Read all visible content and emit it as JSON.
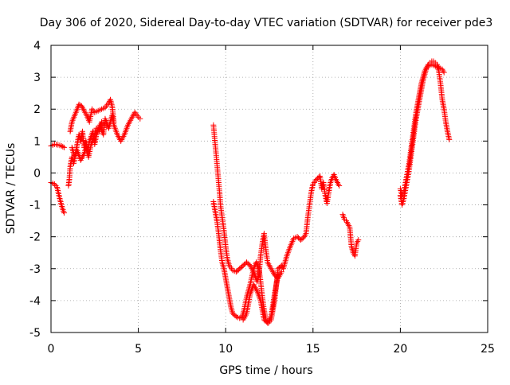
{
  "chart_data": {
    "type": "scatter",
    "title": "Day 306 of 2020, Sidereal Day-to-day VTEC variation (SDTVAR) for receiver pde3",
    "xlabel": "GPS time / hours",
    "ylabel": "SDTVAR / TECUs",
    "xlim": [
      0,
      25
    ],
    "ylim": [
      -5,
      4
    ],
    "xticks": [
      0,
      5,
      10,
      15,
      20,
      25
    ],
    "yticks": [
      -5,
      -4,
      -3,
      -2,
      -1,
      0,
      1,
      2,
      3,
      4
    ],
    "grid": true,
    "legend": "none",
    "series_color": "#ff0000",
    "marker": "plus",
    "series": [
      {
        "name": "SDTVAR",
        "segments": [
          [
            [
              0.0,
              0.85
            ],
            [
              0.2,
              0.9
            ],
            [
              0.4,
              0.88
            ],
            [
              0.6,
              0.85
            ],
            [
              0.75,
              0.8
            ]
          ],
          [
            [
              0.0,
              -0.3
            ],
            [
              0.2,
              -0.35
            ],
            [
              0.35,
              -0.45
            ],
            [
              0.5,
              -0.8
            ],
            [
              0.65,
              -1.1
            ],
            [
              0.75,
              -1.25
            ]
          ],
          [
            [
              1.0,
              -0.4
            ],
            [
              1.05,
              -0.2
            ],
            [
              1.1,
              0.2
            ],
            [
              1.2,
              0.5
            ],
            [
              1.3,
              0.3
            ],
            [
              1.4,
              0.6
            ],
            [
              1.5,
              0.9
            ],
            [
              1.6,
              1.2
            ],
            [
              1.7,
              1.0
            ],
            [
              1.8,
              1.3
            ],
            [
              1.9,
              0.8
            ],
            [
              2.0,
              1.0
            ],
            [
              2.1,
              0.7
            ],
            [
              2.2,
              1.0
            ],
            [
              2.4,
              1.3
            ],
            [
              2.5,
              0.9
            ],
            [
              2.6,
              1.2
            ],
            [
              2.8,
              1.5
            ],
            [
              3.0,
              1.2
            ],
            [
              3.1,
              1.7
            ],
            [
              3.3,
              1.4
            ],
            [
              3.5,
              1.8
            ],
            [
              3.6,
              1.5
            ],
            [
              3.8,
              1.2
            ],
            [
              4.0,
              1.0
            ],
            [
              4.2,
              1.2
            ],
            [
              4.4,
              1.5
            ],
            [
              4.6,
              1.7
            ],
            [
              4.8,
              1.9
            ],
            [
              5.0,
              1.75
            ],
            [
              5.1,
              1.7
            ]
          ],
          [
            [
              1.1,
              1.3
            ],
            [
              1.2,
              1.6
            ],
            [
              1.35,
              1.8
            ],
            [
              1.5,
              2.0
            ],
            [
              1.6,
              2.15
            ],
            [
              1.75,
              2.1
            ],
            [
              1.9,
              1.95
            ],
            [
              2.05,
              1.8
            ],
            [
              2.2,
              1.6
            ],
            [
              2.35,
              2.0
            ],
            [
              2.5,
              1.9
            ],
            [
              2.7,
              1.95
            ],
            [
              2.9,
              2.0
            ],
            [
              3.1,
              2.05
            ],
            [
              3.3,
              2.2
            ],
            [
              3.4,
              2.3
            ],
            [
              3.5,
              2.1
            ],
            [
              3.6,
              1.6
            ]
          ],
          [
            [
              1.2,
              0.8
            ],
            [
              1.35,
              0.5
            ],
            [
              1.5,
              0.7
            ],
            [
              1.7,
              0.4
            ],
            [
              1.9,
              0.6
            ],
            [
              2.0,
              0.8
            ],
            [
              2.15,
              0.5
            ],
            [
              2.3,
              0.9
            ],
            [
              2.45,
              1.1
            ],
            [
              2.6,
              1.4
            ],
            [
              2.75,
              1.3
            ],
            [
              2.9,
              1.6
            ],
            [
              3.05,
              1.5
            ]
          ],
          [
            [
              9.3,
              1.5
            ],
            [
              9.35,
              1.2
            ],
            [
              9.4,
              0.9
            ],
            [
              9.45,
              0.6
            ],
            [
              9.5,
              0.3
            ],
            [
              9.55,
              0.0
            ],
            [
              9.6,
              -0.3
            ],
            [
              9.65,
              -0.6
            ],
            [
              9.7,
              -1.0
            ],
            [
              9.8,
              -1.4
            ],
            [
              9.9,
              -1.8
            ],
            [
              10.0,
              -2.3
            ],
            [
              10.1,
              -2.7
            ],
            [
              10.2,
              -2.9
            ],
            [
              10.4,
              -3.05
            ],
            [
              10.6,
              -3.1
            ],
            [
              10.8,
              -3.0
            ],
            [
              11.0,
              -2.9
            ],
            [
              11.2,
              -2.8
            ],
            [
              11.4,
              -2.9
            ],
            [
              11.6,
              -3.1
            ],
            [
              11.8,
              -3.4
            ],
            [
              11.9,
              -3.2
            ],
            [
              12.0,
              -2.6
            ],
            [
              12.1,
              -2.2
            ],
            [
              12.2,
              -1.9
            ],
            [
              12.3,
              -2.4
            ],
            [
              12.4,
              -2.8
            ],
            [
              12.6,
              -3.0
            ],
            [
              12.8,
              -3.2
            ],
            [
              13.0,
              -3.3
            ],
            [
              13.2,
              -3.1
            ]
          ],
          [
            [
              9.3,
              -0.9
            ],
            [
              9.4,
              -1.2
            ],
            [
              9.5,
              -1.5
            ],
            [
              9.6,
              -1.9
            ],
            [
              9.7,
              -2.4
            ],
            [
              9.8,
              -2.8
            ],
            [
              9.9,
              -3.0
            ],
            [
              10.0,
              -3.3
            ],
            [
              10.1,
              -3.6
            ],
            [
              10.2,
              -3.9
            ],
            [
              10.3,
              -4.2
            ],
            [
              10.4,
              -4.4
            ],
            [
              10.6,
              -4.5
            ],
            [
              10.8,
              -4.55
            ],
            [
              10.95,
              -4.5
            ],
            [
              11.05,
              -4.3
            ],
            [
              11.2,
              -3.9
            ],
            [
              11.4,
              -3.5
            ],
            [
              11.6,
              -3.0
            ],
            [
              11.75,
              -2.8
            ],
            [
              11.9,
              -3.0
            ],
            [
              12.0,
              -3.4
            ],
            [
              12.1,
              -3.9
            ],
            [
              12.2,
              -4.3
            ],
            [
              12.3,
              -4.6
            ],
            [
              12.45,
              -4.7
            ],
            [
              12.6,
              -4.6
            ],
            [
              12.7,
              -4.3
            ],
            [
              12.8,
              -4.0
            ],
            [
              12.9,
              -3.5
            ],
            [
              13.0,
              -3.0
            ],
            [
              13.2,
              -2.9
            ],
            [
              13.3,
              -3.0
            ],
            [
              13.5,
              -2.6
            ],
            [
              13.7,
              -2.3
            ],
            [
              13.9,
              -2.05
            ],
            [
              14.1,
              -2.0
            ],
            [
              14.3,
              -2.1
            ],
            [
              14.5,
              -2.0
            ],
            [
              14.6,
              -1.9
            ],
            [
              14.7,
              -1.4
            ],
            [
              14.8,
              -1.0
            ],
            [
              14.9,
              -0.6
            ],
            [
              15.0,
              -0.35
            ],
            [
              15.2,
              -0.2
            ],
            [
              15.4,
              -0.1
            ]
          ],
          [
            [
              11.0,
              -4.6
            ],
            [
              11.2,
              -4.4
            ],
            [
              11.4,
              -3.8
            ],
            [
              11.6,
              -3.5
            ],
            [
              11.8,
              -3.7
            ],
            [
              12.0,
              -4.0
            ],
            [
              12.2,
              -4.6
            ],
            [
              12.4,
              -4.7
            ],
            [
              12.6,
              -4.5
            ],
            [
              12.8,
              -3.8
            ],
            [
              13.0,
              -3.2
            ]
          ],
          [
            [
              15.4,
              -0.1
            ],
            [
              15.5,
              -0.5
            ],
            [
              15.6,
              -0.3
            ],
            [
              15.7,
              -0.7
            ],
            [
              15.8,
              -0.95
            ],
            [
              15.9,
              -0.6
            ],
            [
              16.0,
              -0.3
            ],
            [
              16.1,
              -0.15
            ],
            [
              16.2,
              -0.05
            ],
            [
              16.3,
              -0.2
            ],
            [
              16.4,
              -0.3
            ],
            [
              16.5,
              -0.4
            ]
          ],
          [
            [
              16.7,
              -1.3
            ],
            [
              16.8,
              -1.45
            ],
            [
              16.9,
              -1.5
            ],
            [
              17.0,
              -1.6
            ],
            [
              17.1,
              -1.7
            ],
            [
              17.2,
              -2.3
            ],
            [
              17.3,
              -2.5
            ],
            [
              17.4,
              -2.6
            ],
            [
              17.5,
              -2.2
            ],
            [
              17.6,
              -2.1
            ]
          ],
          [
            [
              20.0,
              -0.7
            ],
            [
              20.1,
              -1.0
            ],
            [
              20.2,
              -0.8
            ],
            [
              20.3,
              -0.5
            ],
            [
              20.4,
              -0.2
            ],
            [
              20.5,
              0.1
            ],
            [
              20.6,
              0.5
            ],
            [
              20.7,
              0.9
            ],
            [
              20.8,
              1.3
            ],
            [
              20.9,
              1.7
            ],
            [
              21.0,
              2.0
            ],
            [
              21.1,
              2.3
            ],
            [
              21.2,
              2.6
            ],
            [
              21.3,
              2.9
            ],
            [
              21.4,
              3.1
            ],
            [
              21.5,
              3.3
            ],
            [
              21.6,
              3.4
            ],
            [
              21.7,
              3.45
            ],
            [
              21.8,
              3.5
            ],
            [
              21.9,
              3.5
            ],
            [
              22.0,
              3.45
            ],
            [
              22.1,
              3.4
            ],
            [
              22.2,
              3.2
            ],
            [
              22.3,
              2.8
            ],
            [
              22.4,
              2.3
            ],
            [
              22.5,
              2.0
            ],
            [
              22.6,
              1.6
            ],
            [
              22.7,
              1.3
            ],
            [
              22.8,
              1.05
            ]
          ],
          [
            [
              20.0,
              -0.5
            ],
            [
              20.1,
              -0.7
            ],
            [
              20.2,
              -0.6
            ],
            [
              20.3,
              -0.3
            ],
            [
              20.4,
              0.0
            ],
            [
              20.5,
              0.3
            ],
            [
              20.6,
              0.7
            ],
            [
              20.7,
              1.1
            ],
            [
              20.8,
              1.5
            ],
            [
              20.9,
              1.9
            ],
            [
              21.0,
              2.2
            ],
            [
              21.1,
              2.5
            ],
            [
              21.2,
              2.8
            ],
            [
              21.3,
              3.0
            ],
            [
              21.4,
              3.2
            ],
            [
              21.5,
              3.3
            ],
            [
              21.6,
              3.35
            ],
            [
              21.8,
              3.4
            ],
            [
              22.0,
              3.35
            ],
            [
              22.2,
              3.3
            ],
            [
              22.4,
              3.25
            ],
            [
              22.5,
              3.15
            ]
          ]
        ]
      }
    ]
  }
}
